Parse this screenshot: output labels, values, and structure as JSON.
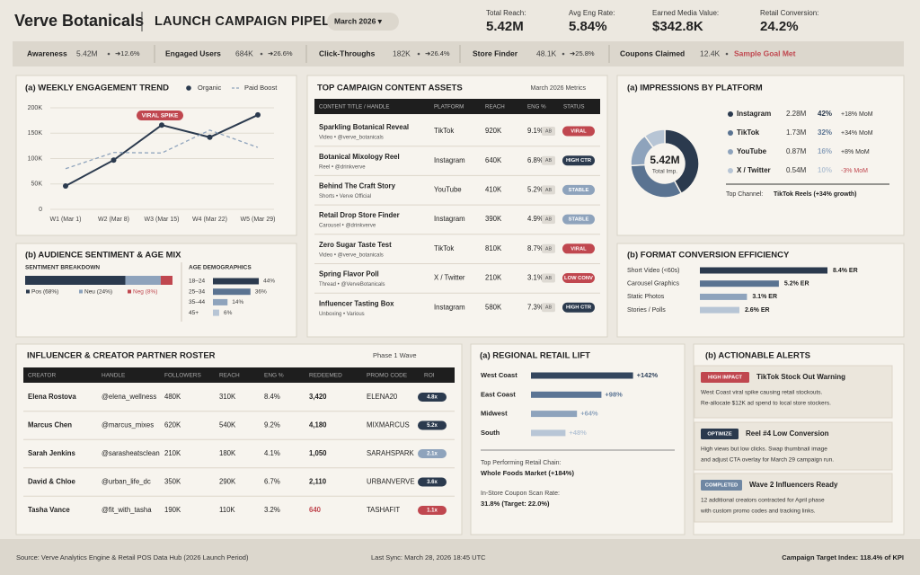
{
  "header": {
    "brand": "Verve Botanicals",
    "title": "LAUNCH CAMPAIGN PIPELINE",
    "period": "March 2026 ▾",
    "kpis": [
      {
        "label": "Total Reach:",
        "value": "5.42M"
      },
      {
        "label": "Avg Eng Rate:",
        "value": "5.84%"
      },
      {
        "label": "Earned Media Value:",
        "value": "$342.8K"
      },
      {
        "label": "Retail Conversion:",
        "value": "24.2%"
      }
    ]
  },
  "funnel": [
    {
      "label": "Awareness",
      "value": "5.42M",
      "change": "➜12.6%"
    },
    {
      "label": "Engaged Users",
      "value": "684K",
      "change": "➜26.6%"
    },
    {
      "label": "Click-Throughs",
      "value": "182K",
      "change": "➜26.4%"
    },
    {
      "label": "Store Finder",
      "value": "48.1K",
      "change": "➜25.8%"
    },
    {
      "label": "Coupons Claimed",
      "value": "12.4K",
      "note": "Sample Goal Met",
      "note_color": "#c0474f"
    }
  ],
  "chart_data": [
    {
      "type": "line",
      "title": "(a) WEEKLY ENGAGEMENT TREND",
      "categories": [
        "W1 (Mar 1)",
        "W2 (Mar 8)",
        "W3 (Mar 15)",
        "W4 (Mar 22)",
        "W5 (Mar 29)"
      ],
      "series": [
        {
          "name": "Organic",
          "color": "#2b3a4e",
          "dashed": false,
          "markers": true,
          "values": [
            46000,
            97000,
            166000,
            142000,
            186000
          ]
        },
        {
          "name": "Paid Boost",
          "color": "#8ea3bc",
          "dashed": true,
          "markers": false,
          "values": [
            80000,
            112000,
            111000,
            156000,
            122000
          ]
        }
      ],
      "ylim": [
        0,
        200000
      ],
      "yticks": [
        0,
        {
          "value": 50000,
          "label": "50K"
        },
        {
          "value": 100000,
          "label": "100K"
        },
        {
          "value": 150000,
          "label": "150K"
        },
        {
          "value": 200000,
          "label": "200K"
        }
      ],
      "grid": true,
      "annotation": "VIRAL SPIKE",
      "annotation_color": "#c0474f"
    },
    {
      "type": "stacked_bar",
      "title": "(b) AUDIENCE SENTIMENT & AGE MIX",
      "subtitle": "SENTIMENT BREAKDOWN",
      "series": [
        {
          "name": "Pos (68%)",
          "color": "#2b3a4e",
          "values": [
            68
          ]
        },
        {
          "name": "Neu (24%)",
          "color": "#8ea3bc",
          "values": [
            24
          ]
        },
        {
          "name": "Neg (8%)",
          "color": "#c0474f",
          "values": [
            8
          ]
        }
      ]
    },
    {
      "type": "hbar",
      "title": "AGE DEMOGRAPHICS",
      "categories": [
        "18–24",
        "25–34",
        "35–44",
        "45+"
      ],
      "values": [
        44,
        36,
        14,
        6
      ],
      "value_labels": [
        "44%",
        "36%",
        "14%",
        "6%"
      ],
      "colors": [
        "#2b3a4e",
        "#5a7391",
        "#8ea3bc",
        "#b7c5d5"
      ]
    },
    {
      "type": "pie",
      "title": "(a) IMPRESSIONS BY PLATFORM",
      "categories": [
        "Instagram",
        "TikTok",
        "YouTube",
        "X / Twitter"
      ],
      "values": [
        42,
        32,
        16,
        10
      ],
      "value_labels": [
        "42%",
        "32%",
        "16%",
        "10%"
      ],
      "colors": [
        "#2b3a4e",
        "#5a7391",
        "#8ea3bc",
        "#b7c5d5"
      ],
      "impressions": [
        "2.28M",
        "1.73M",
        "0.87M",
        "0.54M"
      ],
      "growth": [
        "+18% MoM",
        "+34% MoM",
        "+8% MoM",
        "-3% MoM"
      ],
      "growth_colors": [
        "#333",
        "#333",
        "#333",
        "#c0474f"
      ],
      "center_value": "5.42M",
      "center_label": "Total Imp.",
      "footer_label": "Top Channel:",
      "footer_value": "TikTok Reels (+34% growth)"
    },
    {
      "type": "hbar",
      "title": "(b) FORMAT CONVERSION EFFICIENCY",
      "categories": [
        "Short Video (<60s)",
        "Carousel Graphics",
        "Static Photos",
        "Stories / Polls"
      ],
      "values": [
        8.4,
        5.2,
        3.1,
        2.6
      ],
      "value_labels": [
        "8.4% ER",
        "5.2% ER",
        "3.1% ER",
        "2.6% ER"
      ],
      "colors": [
        "#2b3a4e",
        "#5a7391",
        "#8ea3bc",
        "#b7c5d5"
      ]
    },
    {
      "type": "hbar",
      "title": "(a) REGIONAL RETAIL LIFT",
      "categories": [
        "West Coast",
        "East Coast",
        "Midwest",
        "South"
      ],
      "values": [
        142,
        98,
        64,
        48
      ],
      "value_labels": [
        "+142%",
        "+98%",
        "+64%",
        "+48%"
      ],
      "colors": [
        "#34465e",
        "#5b7494",
        "#8ea3bc",
        "#b8c6d6"
      ],
      "notes": [
        "Top Performing Retail Chain:",
        "Whole Foods Market (+184%)",
        "In-Store Coupon Scan Rate:",
        "31.8% (Target: 22.0%)"
      ]
    }
  ],
  "content_assets": {
    "title": "TOP CAMPAIGN CONTENT ASSETS",
    "note": "March 2026 Metrics",
    "columns": [
      "CONTENT TITLE / HANDLE",
      "PLATFORM",
      "REACH",
      "ENG %",
      "STATUS"
    ],
    "rows": [
      {
        "title": "Sparkling Botanical Reveal",
        "sub": "Video • @verve_botanicals",
        "platform": "TikTok",
        "reach": "920K",
        "eng": "9.1%",
        "tag": "AB",
        "status": "VIRAL",
        "status_color": "#c0474f"
      },
      {
        "title": "Botanical Mixology Reel",
        "sub": "Reel • @drinkverve",
        "platform": "Instagram",
        "reach": "640K",
        "eng": "6.8%",
        "tag": "AB",
        "status": "HIGH CTR",
        "status_color": "#2b3a4e"
      },
      {
        "title": "Behind The Craft Story",
        "sub": "Shorts • Verve Official",
        "platform": "YouTube",
        "reach": "410K",
        "eng": "5.2%",
        "tag": "AB",
        "status": "STABLE",
        "status_color": "#8ea3bc"
      },
      {
        "title": "Retail Drop Store Finder",
        "sub": "Carousel • @drinkverve",
        "platform": "Instagram",
        "reach": "390K",
        "eng": "4.9%",
        "tag": "AB",
        "status": "STABLE",
        "status_color": "#8ea3bc"
      },
      {
        "title": "Zero Sugar Taste Test",
        "sub": "Video • @verve_botanicals",
        "platform": "TikTok",
        "reach": "810K",
        "eng": "8.7%",
        "tag": "AB",
        "status": "VIRAL",
        "status_color": "#c0474f"
      },
      {
        "title": "Spring Flavor Poll",
        "sub": "Thread • @VerveBotanicals",
        "platform": "X / Twitter",
        "reach": "210K",
        "eng": "3.1%",
        "tag": "AB",
        "status": "LOW CONV",
        "status_color": "#c0474f"
      },
      {
        "title": "Influencer Tasting Box",
        "sub": "Unboxing • Various",
        "platform": "Instagram",
        "reach": "580K",
        "eng": "7.3%",
        "tag": "AB",
        "status": "HIGH CTR",
        "status_color": "#2b3a4e"
      }
    ]
  },
  "roster": {
    "title": "INFLUENCER & CREATOR PARTNER ROSTER",
    "note": "Phase 1 Wave",
    "columns": [
      "CREATOR",
      "HANDLE",
      "FOLLOWERS",
      "REACH",
      "ENG %",
      "REDEEMED",
      "PROMO CODE",
      "ROI"
    ],
    "rows": [
      {
        "cells": [
          "Elena Rostova",
          "@elena_wellness",
          "480K",
          "310K",
          "8.4%",
          "3,420",
          "ELENA20",
          "4.8x"
        ],
        "roi_color": "#2b3a4e",
        "redeemed_color": "#222"
      },
      {
        "cells": [
          "Marcus Chen",
          "@marcus_mixes",
          "620K",
          "540K",
          "9.2%",
          "4,180",
          "MIXMARCUS",
          "5.2x"
        ],
        "roi_color": "#2b3a4e",
        "redeemed_color": "#222"
      },
      {
        "cells": [
          "Sarah Jenkins",
          "@sarasheatsclean",
          "210K",
          "180K",
          "4.1%",
          "1,050",
          "SARAHSPARK",
          "2.1x"
        ],
        "roi_color": "#8ea3bc",
        "redeemed_color": "#222"
      },
      {
        "cells": [
          "David & Chloe",
          "@urban_life_dc",
          "350K",
          "290K",
          "6.7%",
          "2,110",
          "URBANVERVE",
          "3.6x"
        ],
        "roi_color": "#2b3a4e",
        "redeemed_color": "#222"
      },
      {
        "cells": [
          "Tasha Vance",
          "@fit_with_tasha",
          "190K",
          "110K",
          "3.2%",
          "640",
          "TASHAFIT",
          "1.1x"
        ],
        "roi_color": "#c0474f",
        "redeemed_color": "#c0474f"
      }
    ]
  },
  "alerts": {
    "title": "(b) ACTIONABLE ALERTS",
    "items": [
      {
        "tag": "HIGH IMPACT",
        "tag_color": "#c0474f",
        "title": "TikTok Stock Out Warning",
        "lines": [
          "West Coast viral spike causing retail stockouts.",
          "Re-allocate $12K ad spend to local store stockers."
        ]
      },
      {
        "tag": "OPTIMIZE",
        "tag_color": "#2b3a4e",
        "title": "Reel #4 Low Conversion",
        "lines": [
          "High views but low clicks. Swap thumbnail image",
          "and adjust CTA overlay for March 29 campaign run."
        ]
      },
      {
        "tag": "COMPLETED",
        "tag_color": "#6f87a3",
        "title": "Wave 2 Influencers Ready",
        "lines": [
          "12 additional creators contracted for April phase",
          "with custom promo codes and tracking links."
        ]
      }
    ]
  },
  "footer": {
    "source": "Source: Verve Analytics Engine & Retail POS Data Hub (2026 Launch Period)",
    "sync": "Last Sync: March 28, 2026 18:45 UTC",
    "target": "Campaign Target Index: 118.4% of KPI"
  }
}
